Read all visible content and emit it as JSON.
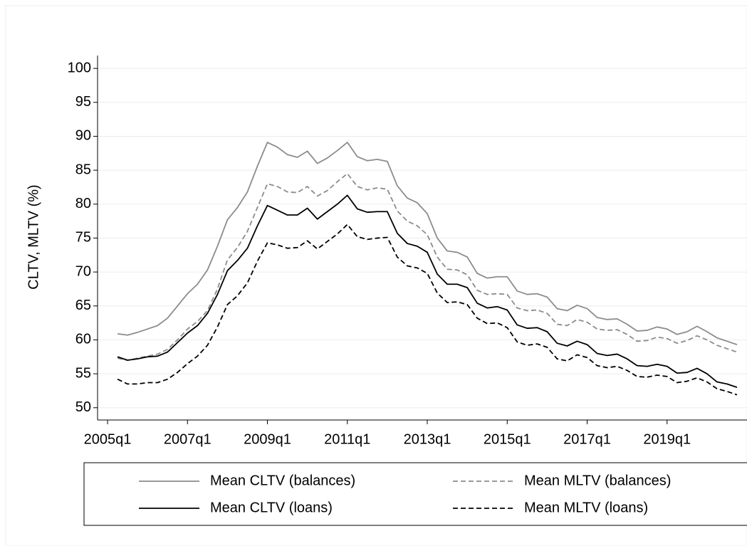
{
  "chart_data": {
    "type": "line",
    "y_label": "CLTV, MLTV (%)",
    "x": [
      "2005q2",
      "2005q3",
      "2005q4",
      "2006q1",
      "2006q2",
      "2006q3",
      "2006q4",
      "2007q1",
      "2007q2",
      "2007q3",
      "2007q4",
      "2008q1",
      "2008q2",
      "2008q3",
      "2008q4",
      "2009q1",
      "2009q2",
      "2009q3",
      "2009q4",
      "2010q1",
      "2010q2",
      "2010q3",
      "2010q4",
      "2011q1",
      "2011q2",
      "2011q3",
      "2011q4",
      "2012q1",
      "2012q2",
      "2012q3",
      "2012q4",
      "2013q1",
      "2013q2",
      "2013q3",
      "2013q4",
      "2014q1",
      "2014q2",
      "2014q3",
      "2014q4",
      "2015q1",
      "2015q2",
      "2015q3",
      "2015q4",
      "2016q1",
      "2016q2",
      "2016q3",
      "2016q4",
      "2017q1",
      "2017q2",
      "2017q3",
      "2017q4",
      "2018q1",
      "2018q2",
      "2018q3",
      "2018q4",
      "2019q1",
      "2019q2",
      "2019q3",
      "2019q4",
      "2020q1",
      "2020q2",
      "2020q3",
      "2020q4"
    ],
    "xlim": [
      "2004q4",
      "2021q1"
    ],
    "xticks": [
      "2005q1",
      "2007q1",
      "2009q1",
      "2011q1",
      "2013q1",
      "2015q1",
      "2017q1",
      "2019q1"
    ],
    "ylim": [
      48.4,
      101.9
    ],
    "yticks": [
      50,
      55,
      60,
      65,
      70,
      75,
      80,
      85,
      90,
      95,
      100
    ],
    "grid": true,
    "legend_position": "bottom",
    "series": [
      {
        "name": "Mean CLTV (balances)",
        "color": "#8c8c8c",
        "dashed": false,
        "values": [
          60.9,
          60.7,
          61.1,
          61.6,
          62.1,
          63.2,
          65.0,
          66.8,
          68.2,
          70.3,
          73.8,
          77.7,
          79.5,
          81.8,
          85.6,
          89.1,
          88.4,
          87.3,
          86.9,
          87.8,
          86.0,
          86.8,
          87.9,
          89.1,
          87.0,
          86.4,
          86.6,
          86.3,
          82.7,
          80.9,
          80.2,
          78.6,
          75.0,
          73.1,
          72.9,
          72.2,
          69.8,
          69.1,
          69.3,
          69.3,
          67.2,
          66.7,
          66.8,
          66.3,
          64.6,
          64.3,
          65.1,
          64.6,
          63.3,
          63.0,
          63.1,
          62.3,
          61.3,
          61.4,
          61.9,
          61.6,
          60.8,
          61.2,
          62.0,
          61.2,
          60.3,
          59.8,
          59.3
        ]
      },
      {
        "name": "Mean MLTV (balances)",
        "color": "#8c8c8c",
        "dashed": true,
        "values": [
          57.3,
          57.0,
          57.3,
          57.6,
          57.9,
          58.6,
          60.0,
          61.6,
          62.7,
          64.3,
          67.5,
          71.8,
          73.6,
          76.0,
          79.5,
          83.0,
          82.6,
          81.8,
          81.7,
          82.6,
          81.2,
          82.0,
          83.3,
          84.5,
          82.6,
          82.1,
          82.4,
          82.2,
          79.0,
          77.5,
          76.8,
          75.5,
          72.2,
          70.4,
          70.3,
          69.6,
          67.3,
          66.7,
          66.8,
          66.7,
          64.7,
          64.3,
          64.4,
          63.9,
          62.3,
          62.1,
          63.0,
          62.6,
          61.6,
          61.4,
          61.5,
          60.8,
          59.8,
          59.9,
          60.4,
          60.2,
          59.5,
          59.9,
          60.6,
          60.0,
          59.2,
          58.7,
          58.2
        ]
      },
      {
        "name": "Mean CLTV (loans)",
        "color": "#000000",
        "dashed": false,
        "values": [
          57.5,
          57.0,
          57.2,
          57.5,
          57.6,
          58.2,
          59.6,
          61.0,
          62.1,
          63.9,
          66.7,
          70.2,
          71.7,
          73.5,
          76.8,
          79.8,
          79.1,
          78.4,
          78.4,
          79.4,
          77.8,
          78.9,
          80.0,
          81.3,
          79.3,
          78.8,
          78.9,
          78.9,
          75.7,
          74.2,
          73.8,
          72.9,
          69.7,
          68.2,
          68.2,
          67.7,
          65.4,
          64.7,
          64.9,
          64.4,
          62.2,
          61.7,
          61.8,
          61.2,
          59.5,
          59.1,
          59.8,
          59.3,
          58.0,
          57.7,
          57.9,
          57.2,
          56.2,
          56.1,
          56.4,
          56.1,
          55.1,
          55.2,
          55.8,
          55.0,
          53.8,
          53.5,
          53.0
        ]
      },
      {
        "name": "Mean MLTV (loans)",
        "color": "#000000",
        "dashed": true,
        "values": [
          54.2,
          53.5,
          53.5,
          53.7,
          53.7,
          54.2,
          55.2,
          56.5,
          57.6,
          59.2,
          61.9,
          65.2,
          66.5,
          68.4,
          71.6,
          74.3,
          74.0,
          73.5,
          73.6,
          74.6,
          73.4,
          74.5,
          75.6,
          77.0,
          75.2,
          74.8,
          75.0,
          75.1,
          72.2,
          70.9,
          70.6,
          69.8,
          66.9,
          65.5,
          65.6,
          65.2,
          63.2,
          62.4,
          62.5,
          61.8,
          59.7,
          59.2,
          59.4,
          58.9,
          57.2,
          56.9,
          57.8,
          57.4,
          56.2,
          55.9,
          56.1,
          55.5,
          54.6,
          54.5,
          54.8,
          54.6,
          53.7,
          53.9,
          54.4,
          53.8,
          52.8,
          52.4,
          51.9
        ]
      }
    ]
  }
}
